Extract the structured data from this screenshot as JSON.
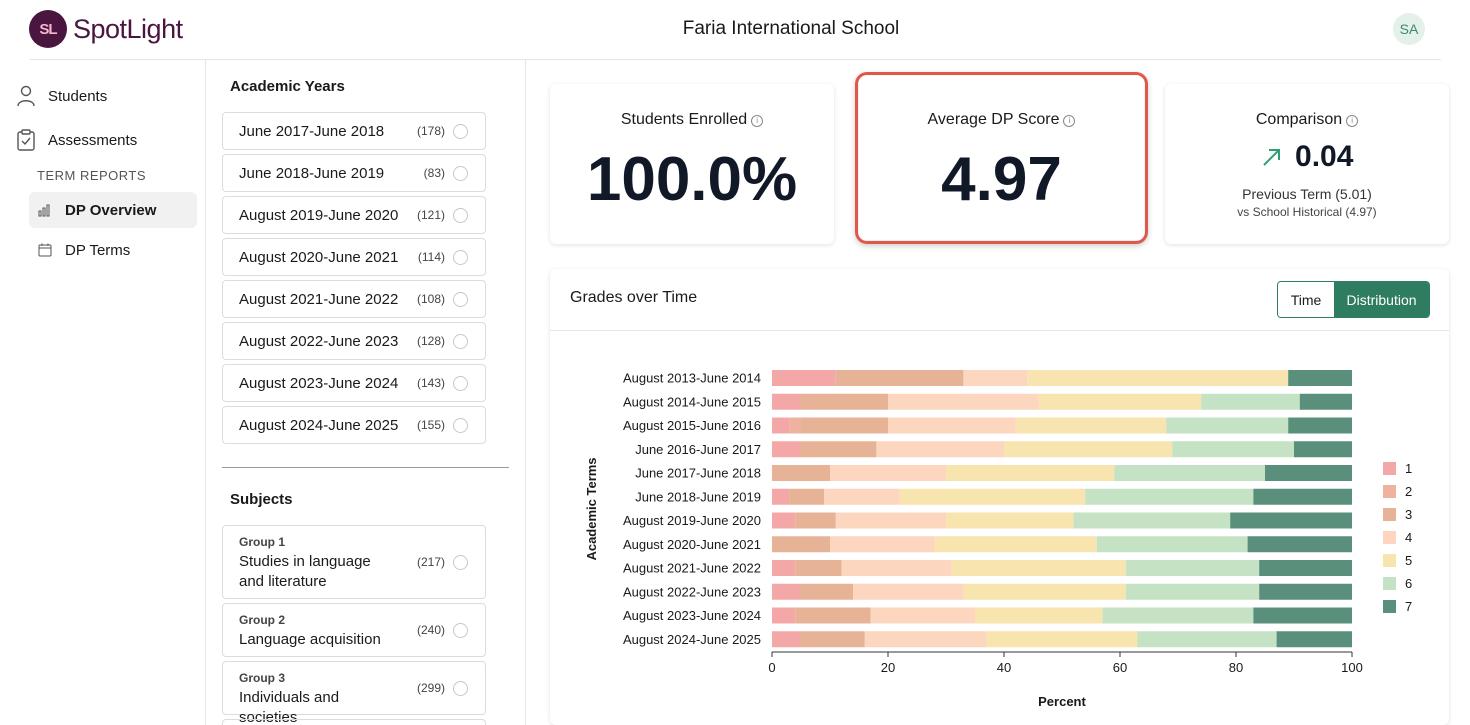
{
  "header": {
    "logo_mark": "SL",
    "logo_text": "SpotLight",
    "school": "Faria International School",
    "avatar": "SA"
  },
  "nav": {
    "students": "Students",
    "assessments": "Assessments",
    "section": "TERM REPORTS",
    "dp_overview": "DP Overview",
    "dp_terms": "DP Terms"
  },
  "filters": {
    "years_title": "Academic Years",
    "years": [
      {
        "label": "June 2017-June 2018",
        "count": "(178)"
      },
      {
        "label": "June 2018-June 2019",
        "count": "(83)"
      },
      {
        "label": "August 2019-June 2020",
        "count": "(121)"
      },
      {
        "label": "August 2020-June 2021",
        "count": "(114)"
      },
      {
        "label": "August 2021-June 2022",
        "count": "(108)"
      },
      {
        "label": "August 2022-June 2023",
        "count": "(128)"
      },
      {
        "label": "August 2023-June 2024",
        "count": "(143)"
      },
      {
        "label": "August 2024-June 2025",
        "count": "(155)"
      }
    ],
    "subjects_title": "Subjects",
    "subjects": [
      {
        "group": "Group 1",
        "name": "Studies in language and literature",
        "count": "(217)"
      },
      {
        "group": "Group 2",
        "name": "Language acquisition",
        "count": "(240)"
      },
      {
        "group": "Group 3",
        "name": "Individuals and societies",
        "count": "(299)"
      }
    ]
  },
  "kpis": {
    "enrolled": {
      "title": "Students Enrolled",
      "value": "100.0%"
    },
    "average": {
      "title": "Average DP Score",
      "value": "4.97"
    },
    "comparison": {
      "title": "Comparison",
      "value": "0.04",
      "previous": "Previous Term (5.01)",
      "historical": "vs School Historical (4.97)"
    }
  },
  "panel": {
    "title": "Grades over Time",
    "toggle_time": "Time",
    "toggle_distribution": "Distribution"
  },
  "colors": {
    "accent": "#2e7d60",
    "highlight": "#e0584b"
  },
  "chart_data": {
    "type": "bar",
    "orientation": "horizontal",
    "stacked": true,
    "xlabel": "Percent",
    "ylabel": "Academic Terms",
    "xlim": [
      0,
      100
    ],
    "xticks": [
      0,
      20,
      40,
      60,
      80,
      100
    ],
    "legend_position": "right",
    "categories": [
      "August 2013-June 2014",
      "August 2014-June 2015",
      "August 2015-June 2016",
      "June 2016-June 2017",
      "June 2017-June 2018",
      "June 2018-June 2019",
      "August 2019-June 2020",
      "August 2020-June 2021",
      "August 2021-June 2022",
      "August 2022-June 2023",
      "August 2023-June 2024",
      "August 2024-June 2025"
    ],
    "series": [
      {
        "name": "1",
        "color": "#f4a7a7",
        "values": [
          11,
          5,
          3,
          5,
          0,
          3,
          4,
          0,
          4,
          5,
          4,
          5
        ]
      },
      {
        "name": "2",
        "color": "#efb29e",
        "values": [
          0,
          0,
          2,
          0,
          0,
          0,
          0,
          0,
          0,
          0,
          0,
          0
        ]
      },
      {
        "name": "3",
        "color": "#e7b396",
        "values": [
          22,
          15,
          15,
          13,
          10,
          6,
          7,
          10,
          8,
          9,
          13,
          11
        ]
      },
      {
        "name": "4",
        "color": "#fcd6bf",
        "values": [
          11,
          26,
          22,
          22,
          20,
          13,
          19,
          18,
          19,
          19,
          18,
          21
        ]
      },
      {
        "name": "5",
        "color": "#f7e4ae",
        "values": [
          45,
          28,
          26,
          29,
          29,
          32,
          22,
          28,
          30,
          28,
          22,
          26
        ]
      },
      {
        "name": "6",
        "color": "#c5e2c5",
        "values": [
          0,
          17,
          21,
          21,
          26,
          29,
          27,
          26,
          23,
          23,
          26,
          24
        ]
      },
      {
        "name": "7",
        "color": "#5a8f7b",
        "values": [
          11,
          9,
          11,
          10,
          15,
          17,
          21,
          18,
          16,
          16,
          17,
          13
        ]
      }
    ]
  }
}
